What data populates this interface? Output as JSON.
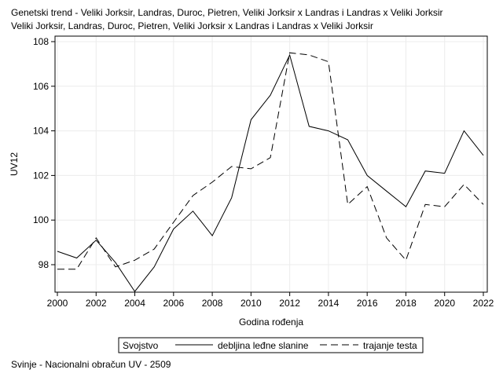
{
  "header": {
    "title_line1": "Genetski trend - Veliki Jorksir, Landras, Duroc, Pietren, Veliki Jorksir x Landras i Landras x Veliki Jorksir",
    "title_line2": "Veliki Jorksir, Landras, Duroc, Pietren, Veliki Jorksir x Landras i Landras x Veliki Jorksir"
  },
  "footnote": "Svinje - Nacionalni obračun UV - 2509",
  "chart_data": {
    "type": "line",
    "xlabel": "Godina rođenja",
    "ylabel": "UV12",
    "xlim": [
      2000,
      2022
    ],
    "ylim": [
      96.8,
      108
    ],
    "xticks": [
      2000,
      2002,
      2004,
      2006,
      2008,
      2010,
      2012,
      2014,
      2016,
      2018,
      2020,
      2022
    ],
    "yticks": [
      98,
      100,
      102,
      104,
      106,
      108
    ],
    "grid": true,
    "legend": {
      "title": "Svojstvo",
      "position": "bottom"
    },
    "x": [
      2000,
      2001,
      2002,
      2003,
      2004,
      2005,
      2006,
      2007,
      2008,
      2009,
      2010,
      2011,
      2012,
      2013,
      2014,
      2015,
      2016,
      2017,
      2018,
      2019,
      2020,
      2021,
      2022
    ],
    "series": [
      {
        "name": "debljina leđne slanine",
        "style": "solid",
        "color": "#000000",
        "values": [
          98.6,
          98.3,
          99.1,
          98.1,
          96.8,
          97.9,
          99.6,
          100.4,
          99.3,
          101.0,
          104.5,
          105.6,
          107.4,
          104.2,
          104.0,
          103.6,
          102.0,
          101.3,
          100.6,
          102.2,
          102.1,
          104.0,
          102.9
        ]
      },
      {
        "name": "trajanje testa",
        "style": "dashed",
        "color": "#000000",
        "values": [
          97.8,
          97.8,
          99.2,
          97.9,
          98.2,
          98.7,
          99.9,
          101.1,
          101.7,
          102.4,
          102.3,
          102.8,
          107.5,
          107.4,
          107.1,
          100.7,
          101.5,
          99.2,
          98.2,
          100.7,
          100.6,
          101.6,
          100.7
        ]
      }
    ]
  }
}
